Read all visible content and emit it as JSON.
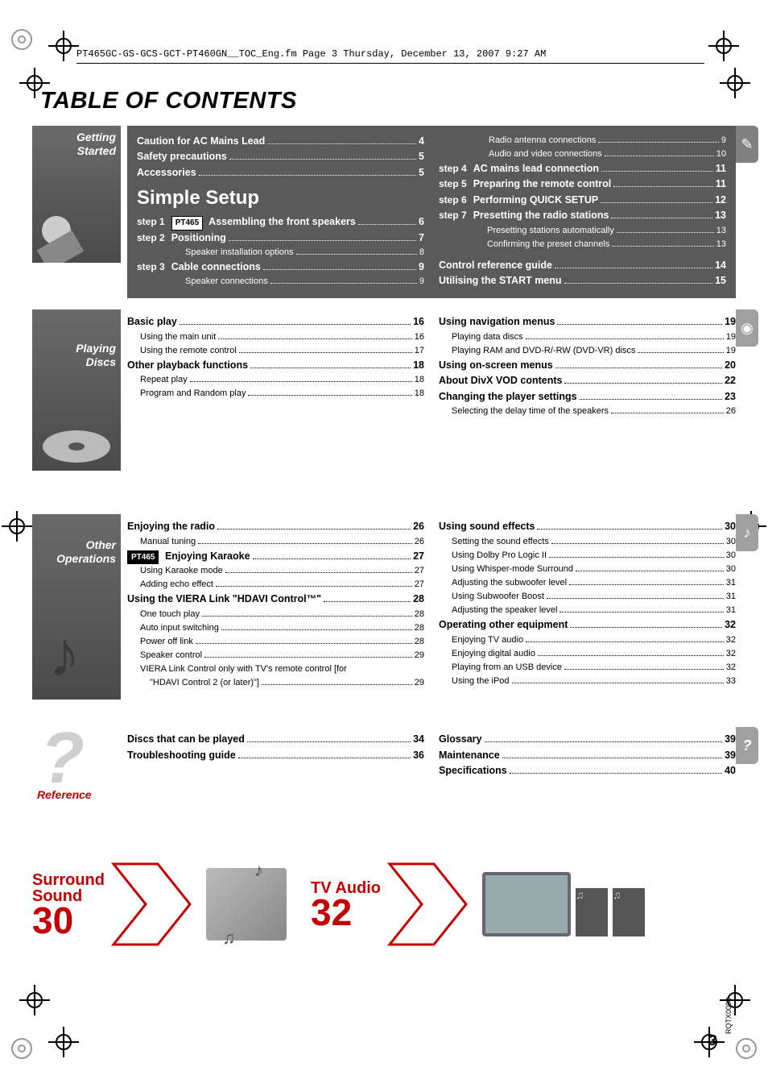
{
  "header_meta": "PT465GC-GS-GCS-GCT-PT460GN__TOC_Eng.fm  Page 3  Thursday, December 13, 2007  9:27 AM",
  "title": "TABLE OF CONTENTS",
  "page_number": "3",
  "doc_code": "RQTX0088",
  "sections": {
    "getting_started": {
      "label": "Getting\nStarted",
      "tab_icon": "✎",
      "sidebar_bg": "#666666",
      "top_items": [
        {
          "label": "Caution for AC Mains Lead",
          "page": "4",
          "bold": true
        },
        {
          "label": "Safety precautions",
          "page": "5",
          "bold": true
        },
        {
          "label": "Accessories",
          "page": "5",
          "bold": true
        }
      ],
      "simple_setup_heading": "Simple Setup",
      "tag_box_text": "PT465",
      "steps_left": [
        {
          "step": "step 1",
          "tag": "PT465",
          "label": "Assembling the front speakers",
          "page": "6",
          "bold": true,
          "subs": []
        },
        {
          "step": "step 2",
          "label": "Positioning",
          "page": "7",
          "bold": true,
          "subs": [
            {
              "label": "Speaker installation options",
              "page": "8"
            }
          ]
        },
        {
          "step": "step 3",
          "label": "Cable connections",
          "page": "9",
          "bold": true,
          "subs": [
            {
              "label": "Speaker connections",
              "page": "9"
            }
          ]
        }
      ],
      "steps_right_pre": [
        {
          "label": "Radio antenna connections",
          "page": "9"
        },
        {
          "label": "Audio and video connections",
          "page": "10"
        }
      ],
      "steps_right": [
        {
          "step": "step 4",
          "label": "AC mains lead connection",
          "page": "11",
          "bold": true,
          "subs": []
        },
        {
          "step": "step 5",
          "label": "Preparing the remote control",
          "page": "11",
          "bold": true,
          "subs": []
        },
        {
          "step": "step 6",
          "label": "Performing QUICK SETUP",
          "page": "12",
          "bold": true,
          "subs": []
        },
        {
          "step": "step 7",
          "label": "Presetting the radio stations",
          "page": "13",
          "bold": true,
          "subs": [
            {
              "label": "Presetting stations automatically",
              "page": "13"
            },
            {
              "label": "Confirming the preset channels",
              "page": "13"
            }
          ]
        }
      ],
      "bottom_right": [
        {
          "label": "Control reference guide",
          "page": "14",
          "bold": true
        },
        {
          "label": "Utilising the START menu",
          "page": "15",
          "bold": true
        }
      ]
    },
    "playing_discs": {
      "label": "Playing\nDiscs",
      "tab_icon": "◉",
      "left": [
        {
          "label": "Basic play",
          "page": "16",
          "bold": true
        },
        {
          "label": "Using the main unit",
          "page": "16",
          "sub": true
        },
        {
          "label": "Using the remote control",
          "page": "17",
          "sub": true
        },
        {
          "label": "Other playback functions",
          "page": "18",
          "bold": true
        },
        {
          "label": "Repeat play",
          "page": "18",
          "sub": true
        },
        {
          "label": "Program and Random play",
          "page": "18",
          "sub": true
        }
      ],
      "right": [
        {
          "label": "Using navigation menus",
          "page": "19",
          "bold": true
        },
        {
          "label": "Playing data discs",
          "page": "19",
          "sub": true
        },
        {
          "label": "Playing RAM and DVD-R/-RW (DVD-VR) discs",
          "page": "19",
          "sub": true
        },
        {
          "label": "Using on-screen menus",
          "page": "20",
          "bold": true
        },
        {
          "label": "About DivX VOD contents",
          "page": "22",
          "bold": true
        },
        {
          "label": "Changing the player settings",
          "page": "23",
          "bold": true
        },
        {
          "label": "Selecting the delay time of the speakers",
          "page": "26",
          "sub": true
        }
      ]
    },
    "other_ops": {
      "label": "Other\nOperations",
      "tab_icon": "♪",
      "tag_box_text": "PT465",
      "left": [
        {
          "label": "Enjoying the radio",
          "page": "26",
          "bold": true
        },
        {
          "label": "Manual tuning",
          "page": "26",
          "sub": true
        },
        {
          "tag": "PT465",
          "label": "Enjoying Karaoke",
          "page": "27",
          "bold": true
        },
        {
          "label": "Using Karaoke mode",
          "page": "27",
          "sub": true
        },
        {
          "label": "Adding echo effect",
          "page": "27",
          "sub": true
        },
        {
          "label": "Using the VIERA Link \"HDAVI Control™\"",
          "page": "28",
          "bold": true
        },
        {
          "label": "One touch play",
          "page": "28",
          "sub": true
        },
        {
          "label": "Auto input switching",
          "page": "28",
          "sub": true
        },
        {
          "label": "Power off link",
          "page": "28",
          "sub": true
        },
        {
          "label": "Speaker control",
          "page": "29",
          "sub": true
        },
        {
          "label": "VIERA Link Control only with TV's remote control [for",
          "sub": true,
          "nopage": true
        },
        {
          "label": "\"HDAVI Control 2 (or later)\"]",
          "page": "29",
          "sub": true,
          "indent2": true
        }
      ],
      "right": [
        {
          "label": "Using sound effects",
          "page": "30",
          "bold": true
        },
        {
          "label": "Setting the sound effects",
          "page": "30",
          "sub": true
        },
        {
          "label": "Using Dolby Pro Logic II",
          "page": "30",
          "sub": true
        },
        {
          "label": "Using Whisper-mode Surround",
          "page": "30",
          "sub": true
        },
        {
          "label": "Adjusting the subwoofer level",
          "page": "31",
          "sub": true
        },
        {
          "label": "Using Subwoofer Boost",
          "page": "31",
          "sub": true
        },
        {
          "label": "Adjusting the speaker level",
          "page": "31",
          "sub": true
        },
        {
          "label": "Operating other equipment",
          "page": "32",
          "bold": true
        },
        {
          "label": "Enjoying TV audio",
          "page": "32",
          "sub": true
        },
        {
          "label": "Enjoying digital audio",
          "page": "32",
          "sub": true
        },
        {
          "label": "Playing from an USB device",
          "page": "32",
          "sub": true
        },
        {
          "label": "Using the iPod",
          "page": "33",
          "sub": true
        }
      ]
    },
    "reference": {
      "label": "Reference",
      "tab_icon": "?",
      "left": [
        {
          "label": "Discs that can be played",
          "page": "34",
          "bold": true
        },
        {
          "label": "Troubleshooting guide",
          "page": "36",
          "bold": true
        }
      ],
      "right": [
        {
          "label": "Glossary",
          "page": "39",
          "bold": true
        },
        {
          "label": "Maintenance",
          "page": "39",
          "bold": true
        },
        {
          "label": "Specifications",
          "page": "40",
          "bold": true
        }
      ]
    }
  },
  "promos": {
    "a_title": "Surround\nSound",
    "a_page": "30",
    "b_title": "TV Audio",
    "b_page": "32"
  },
  "colors": {
    "accent_red": "#c40000",
    "dark_block": "#5a5a5a",
    "tab_grey": "#808080"
  }
}
